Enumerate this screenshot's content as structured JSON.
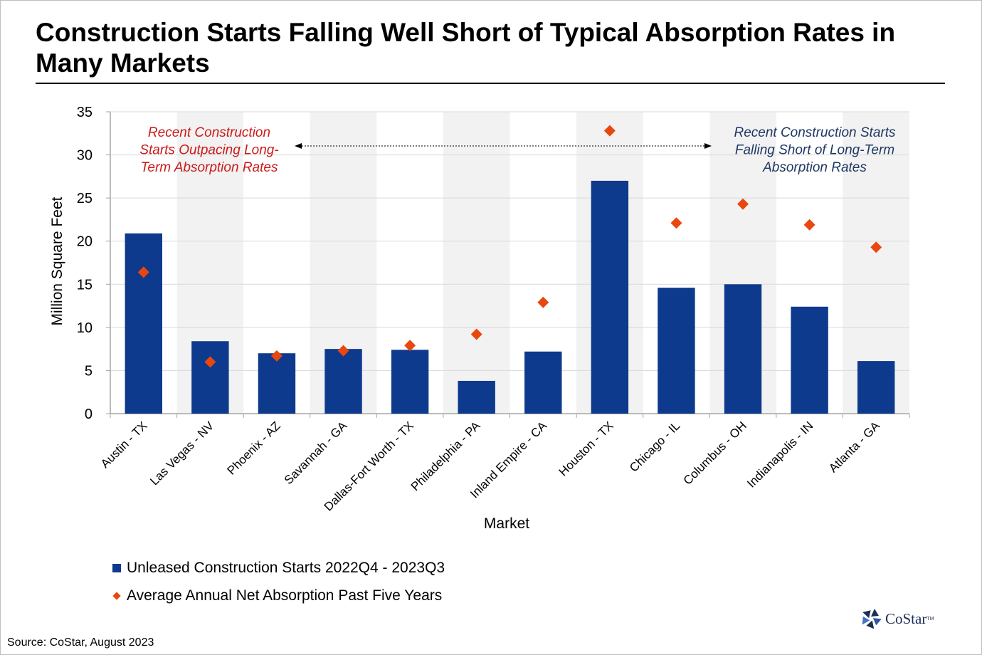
{
  "title": "Construction Starts Falling Well Short of Typical Absorption Rates in Many Markets",
  "source": "Source: CoStar, August 2023",
  "logo": {
    "text": "CoStar",
    "tm": "TM"
  },
  "colors": {
    "bar": "#0d3a8c",
    "marker": "#e8470f",
    "left_note": "#cc1a1a",
    "right_note": "#1f3864",
    "band": "#f2f2f2"
  },
  "legend": {
    "bar_label": "Unleased Construction Starts 2022Q4 - 2023Q3",
    "marker_label": "Average Annual Net Absorption Past Five Years"
  },
  "annotations": {
    "left": [
      "Recent Construction",
      "Starts Outpacing Long-",
      "Term Absorption Rates"
    ],
    "right": [
      "Recent Construction Starts",
      "Falling Short of Long-Term",
      "Absorption Rates"
    ]
  },
  "chart_data": {
    "type": "bar",
    "xlabel": "Market",
    "ylabel": "Million Square Feet",
    "ylim": [
      0,
      35
    ],
    "yticks": [
      0,
      5,
      10,
      15,
      20,
      25,
      30,
      35
    ],
    "grid": true,
    "categories": [
      "Austin - TX",
      "Las Vegas - NV",
      "Phoenix - AZ",
      "Savannah - GA",
      "Dallas-Fort Worth - TX",
      "Philadelphia - PA",
      "Inland Empire - CA",
      "Houston - TX",
      "Chicago - IL",
      "Columbus - OH",
      "Indianapolis - IN",
      "Atlanta - GA"
    ],
    "series": [
      {
        "name": "Unleased Construction Starts 2022Q4 - 2023Q3",
        "kind": "bar",
        "values": [
          20.9,
          8.4,
          7.0,
          7.5,
          7.4,
          3.8,
          7.2,
          27.0,
          14.6,
          15.0,
          12.4,
          6.1
        ]
      },
      {
        "name": "Average Annual Net Absorption Past Five Years",
        "kind": "marker",
        "values": [
          16.4,
          6.0,
          6.7,
          7.3,
          7.9,
          9.2,
          12.9,
          32.8,
          22.1,
          24.3,
          21.9,
          19.3
        ]
      }
    ]
  }
}
